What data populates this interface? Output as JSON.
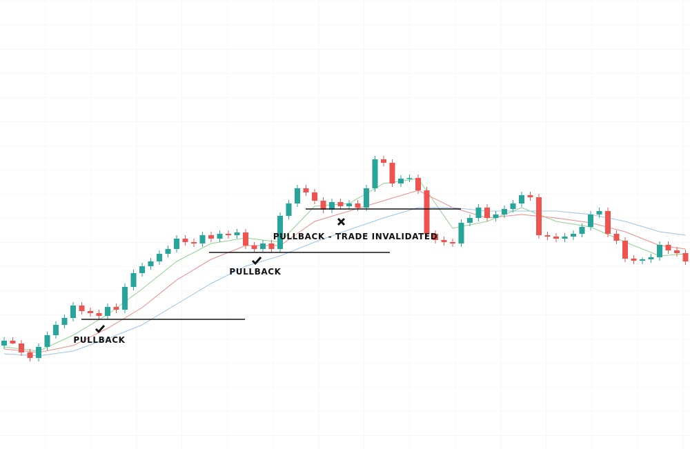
{
  "chart_data": {
    "type": "candlestick",
    "ylim": [
      0,
      651
    ],
    "up_color": "#26a69a",
    "down_color": "#ef5350",
    "open": [
      150,
      157,
      153,
      140,
      132,
      148,
      165,
      180,
      190,
      208,
      200,
      197,
      193,
      206,
      202,
      235,
      255,
      265,
      272,
      283,
      290,
      305,
      300,
      298,
      310,
      305,
      312,
      310,
      314,
      295,
      290,
      298,
      290,
      338,
      356,
      378,
      372,
      360,
      347,
      358,
      352,
      356,
      350,
      378,
      420,
      415,
      385,
      392,
      393,
      375,
      312,
      303,
      300,
      298,
      328,
      335,
      350,
      335,
      340,
      348,
      356,
      368,
      365,
      310,
      308,
      305,
      308,
      312,
      322,
      340,
      345,
      312,
      302,
      276,
      273,
      275,
      278,
      296,
      288,
      284
    ],
    "high": [
      162,
      162,
      158,
      145,
      153,
      170,
      185,
      195,
      213,
      213,
      205,
      202,
      211,
      211,
      240,
      260,
      270,
      277,
      288,
      295,
      310,
      310,
      305,
      315,
      315,
      317,
      317,
      319,
      319,
      300,
      303,
      303,
      343,
      361,
      383,
      383,
      377,
      365,
      363,
      363,
      361,
      361,
      383,
      425,
      425,
      420,
      397,
      398,
      398,
      380,
      317,
      308,
      305,
      333,
      340,
      355,
      355,
      345,
      353,
      361,
      373,
      373,
      370,
      315,
      313,
      313,
      317,
      327,
      345,
      350,
      350,
      317,
      307,
      281,
      278,
      283,
      301,
      301,
      293,
      289
    ],
    "low": [
      145,
      152,
      135,
      127,
      127,
      143,
      160,
      175,
      185,
      195,
      192,
      188,
      188,
      197,
      197,
      230,
      250,
      260,
      267,
      278,
      285,
      295,
      293,
      293,
      300,
      300,
      305,
      305,
      290,
      285,
      285,
      285,
      285,
      333,
      351,
      367,
      355,
      342,
      342,
      347,
      347,
      345,
      345,
      373,
      410,
      380,
      380,
      387,
      370,
      307,
      298,
      295,
      293,
      293,
      323,
      330,
      330,
      330,
      335,
      343,
      351,
      360,
      305,
      303,
      300,
      300,
      303,
      307,
      317,
      335,
      307,
      297,
      271,
      268,
      268,
      270,
      273,
      283,
      279,
      267
    ],
    "close": [
      157,
      153,
      140,
      132,
      148,
      165,
      180,
      190,
      208,
      200,
      197,
      193,
      206,
      202,
      235,
      255,
      265,
      272,
      283,
      290,
      305,
      300,
      298,
      310,
      305,
      312,
      310,
      314,
      295,
      290,
      298,
      290,
      338,
      356,
      378,
      372,
      360,
      347,
      358,
      352,
      356,
      350,
      378,
      420,
      415,
      385,
      392,
      393,
      375,
      312,
      303,
      300,
      298,
      328,
      335,
      350,
      335,
      340,
      348,
      356,
      368,
      365,
      310,
      308,
      305,
      308,
      312,
      322,
      340,
      345,
      312,
      302,
      276,
      273,
      275,
      278,
      296,
      288,
      284,
      272
    ],
    "ma_x": [
      0,
      4,
      8,
      12,
      16,
      20,
      24,
      28,
      32,
      36,
      40,
      44,
      48,
      52,
      56,
      60,
      64,
      68,
      72,
      76,
      79
    ],
    "series": [
      {
        "color": "#8fd18f",
        "values": [
          148,
          142,
          165,
          195,
          232,
          272,
          298,
          306,
          300,
          352,
          356,
          385,
          392,
          320,
          330,
          350,
          330,
          322,
          300,
          280,
          283
        ]
      },
      {
        "color": "#ee8a8a",
        "values": [
          145,
          140,
          150,
          175,
          205,
          245,
          275,
          295,
          295,
          330,
          345,
          360,
          375,
          350,
          335,
          340,
          335,
          328,
          315,
          295,
          290
        ]
      },
      {
        "color": "#9cc3ec",
        "values": [
          138,
          135,
          142,
          160,
          180,
          210,
          240,
          265,
          280,
          300,
          318,
          335,
          350,
          350,
          345,
          345,
          345,
          340,
          330,
          315,
          310
        ]
      }
    ],
    "annotations": [
      "PULLBACK",
      "PULLBACK",
      "PULLBACK - TRADE INVALIDATED"
    ]
  }
}
